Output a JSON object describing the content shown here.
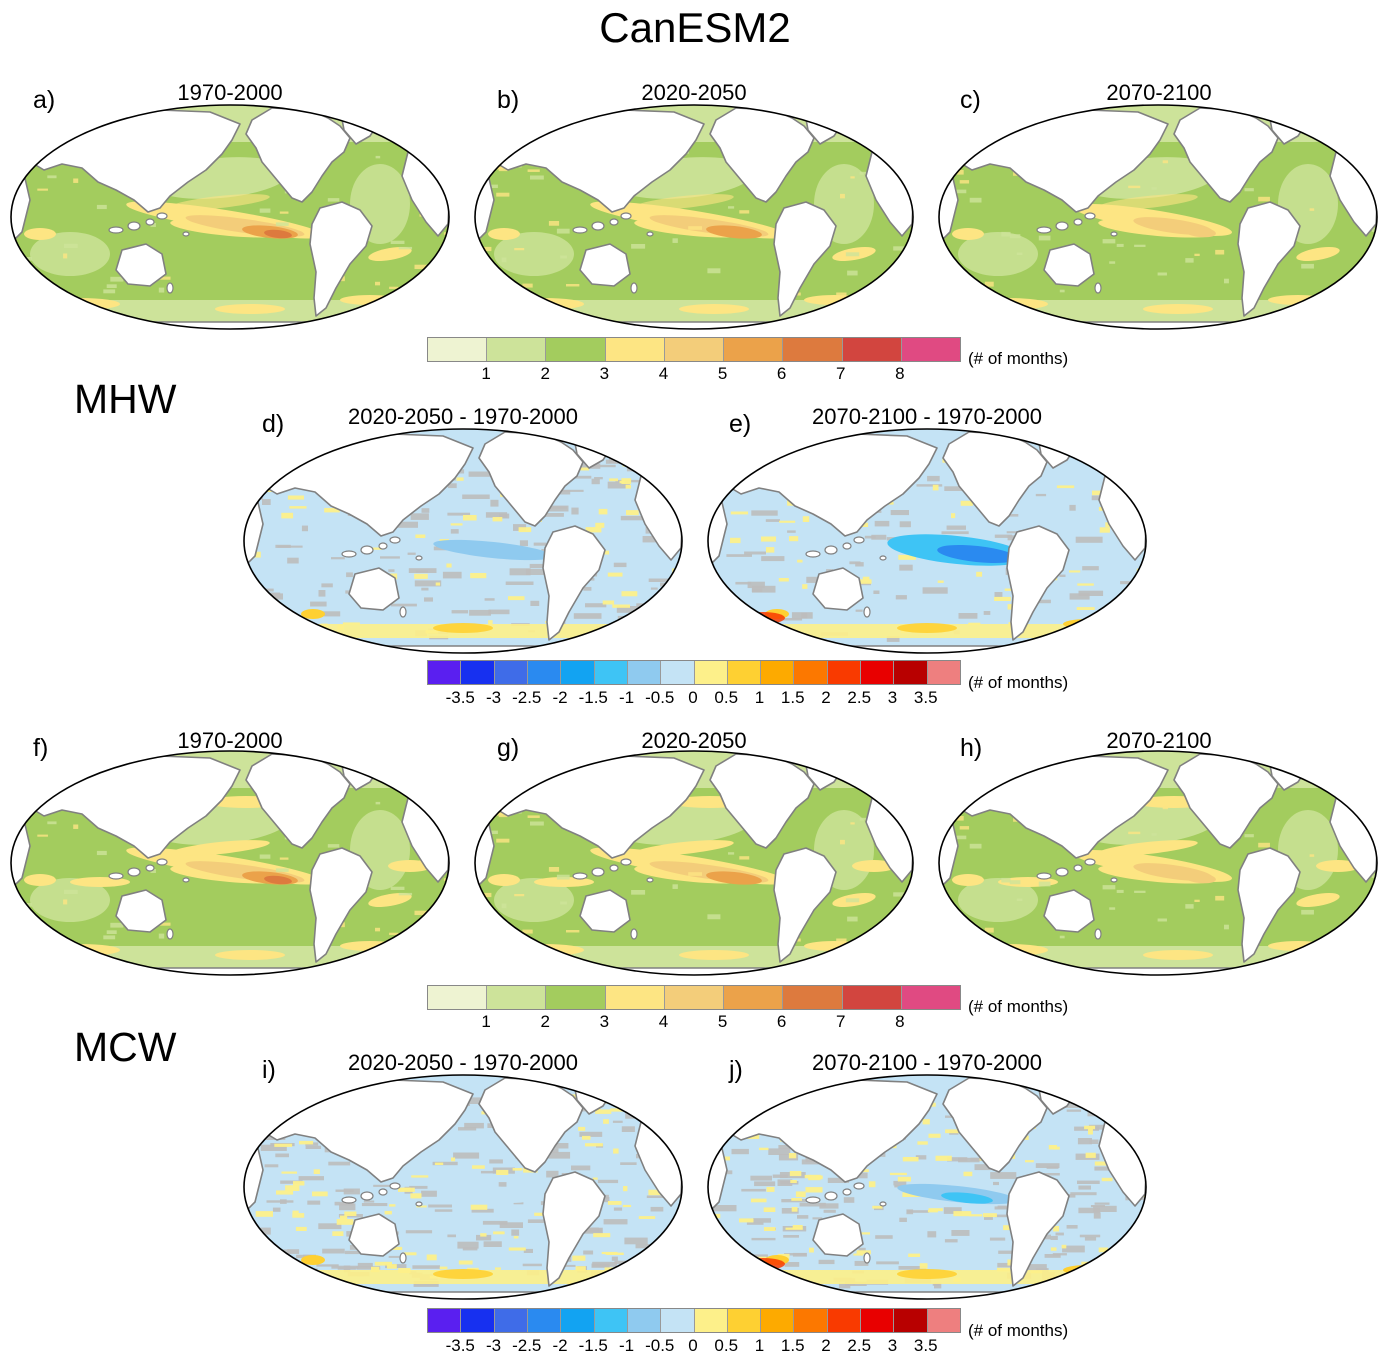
{
  "title": "CanESM2",
  "section_labels": {
    "mhw": "MHW",
    "mcw": "MCW"
  },
  "panels": {
    "a": {
      "letter": "a)",
      "title": "1970-2000"
    },
    "b": {
      "letter": "b)",
      "title": "2020-2050"
    },
    "c": {
      "letter": "c)",
      "title": "2070-2100"
    },
    "d": {
      "letter": "d)",
      "title": "2020-2050 - 1970-2000"
    },
    "e": {
      "letter": "e)",
      "title": "2070-2100 - 1970-2000"
    },
    "f": {
      "letter": "f)",
      "title": "1970-2000"
    },
    "g": {
      "letter": "g)",
      "title": "2020-2050"
    },
    "h": {
      "letter": "h)",
      "title": "2070-2100"
    },
    "i": {
      "letter": "i)",
      "title": "2020-2050 - 1970-2000"
    },
    "j": {
      "letter": "j)",
      "title": "2070-2100 - 1970-2000"
    }
  },
  "colorbars": {
    "absolute": {
      "unit": "(# of months)",
      "ticks": [
        "1",
        "2",
        "3",
        "4",
        "5",
        "6",
        "7",
        "8"
      ],
      "colors": [
        "#eef3d2",
        "#cde39a",
        "#a3cc5e",
        "#fde583",
        "#f3cd7a",
        "#eba24a",
        "#dd7a3e",
        "#d2453f",
        "#e04a82"
      ]
    },
    "difference": {
      "unit": "(# of months)",
      "ticks": [
        "-3.5",
        "-3",
        "-2.5",
        "-2",
        "-1.5",
        "-1",
        "-0.5",
        "0",
        "0.5",
        "1",
        "1.5",
        "2",
        "2.5",
        "3",
        "3.5"
      ],
      "colors": [
        "#5a1ff0",
        "#1730f0",
        "#3f6ce8",
        "#2a8af0",
        "#12a3f2",
        "#3ec4f5",
        "#8fcaef",
        "#c4e3f5",
        "#fdf08a",
        "#fed032",
        "#fdaa00",
        "#fc7800",
        "#f93a00",
        "#e80000",
        "#b80000",
        "#ee7f7f"
      ]
    }
  },
  "map_colors": {
    "land": "#ffffff",
    "coast": "#808080",
    "lightgreen": "#cde39a",
    "green": "#a3cc5e",
    "yellow": "#fde583",
    "tan": "#f3cd7a",
    "orange": "#eba24a",
    "darkorange": "#dd7a3e",
    "gray": "#bdbdbd",
    "lightblue": "#c4e3f5",
    "midblue": "#8fcaef",
    "blue": "#3ec4f5",
    "deepblue": "#2a8af0",
    "diffyellow": "#fdf08a",
    "gold": "#fed032",
    "red": "#f93a00"
  }
}
